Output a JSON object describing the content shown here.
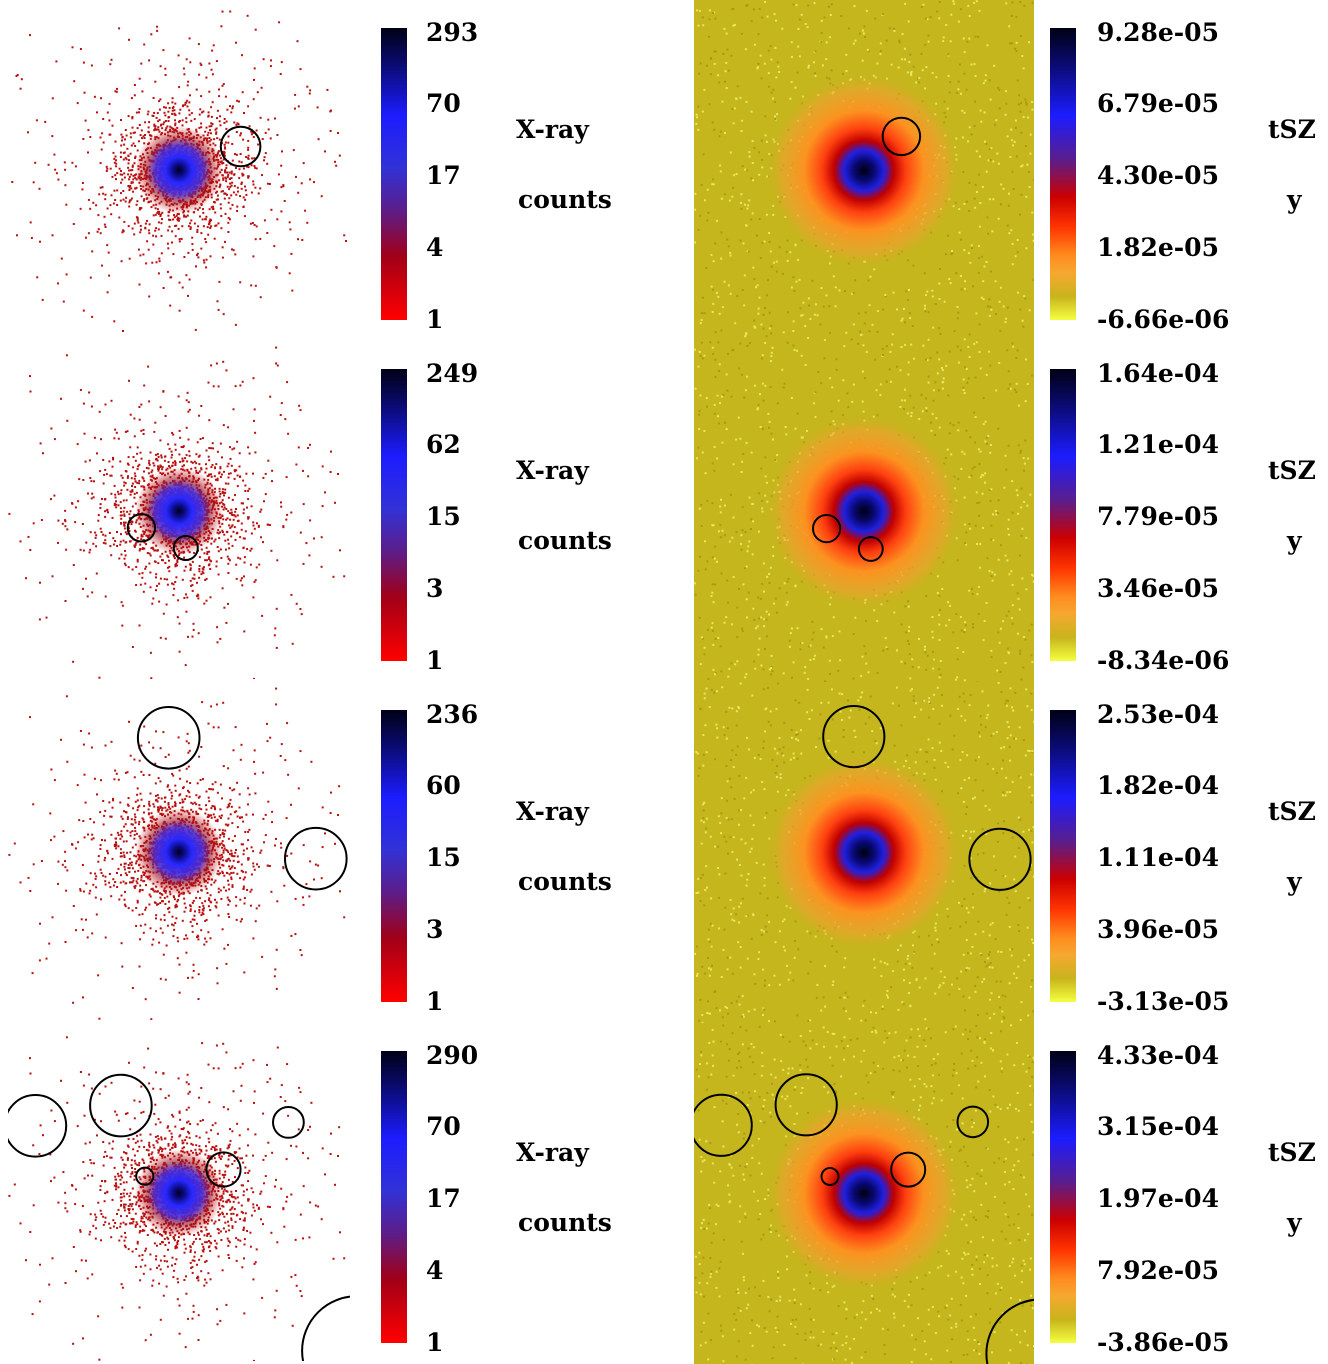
{
  "chart_data": [
    {
      "type": "heatmap",
      "map": "xray",
      "colorbar_ticks": [
        "293",
        "70",
        "17",
        "4",
        "1"
      ],
      "label_line1": "X-ray",
      "label_line2": "counts",
      "scale": "log",
      "sources": [
        {
          "x": 0.68,
          "y": 0.43,
          "r": 0.058
        }
      ]
    },
    {
      "type": "heatmap",
      "map": "tsz",
      "colorbar_ticks": [
        "9.28e-05",
        "6.79e-05",
        "4.30e-05",
        "1.82e-05",
        "-6.66e-06"
      ],
      "label_line1": "tSZ",
      "label_line2": "y",
      "sources": [
        {
          "x": 0.61,
          "y": 0.4,
          "r": 0.055
        }
      ]
    },
    {
      "type": "heatmap",
      "map": "xray",
      "colorbar_ticks": [
        "249",
        "62",
        "15",
        "3",
        "1"
      ],
      "label_line1": "X-ray",
      "label_line2": "counts",
      "scale": "log",
      "sources": [
        {
          "x": 0.39,
          "y": 0.55,
          "r": 0.04
        },
        {
          "x": 0.52,
          "y": 0.61,
          "r": 0.035
        }
      ]
    },
    {
      "type": "heatmap",
      "map": "tsz",
      "colorbar_ticks": [
        "1.64e-04",
        "1.21e-04",
        "7.79e-05",
        "3.46e-05",
        "-8.34e-06"
      ],
      "label_line1": "tSZ",
      "label_line2": "y",
      "sources": [
        {
          "x": 0.39,
          "y": 0.55,
          "r": 0.04
        },
        {
          "x": 0.52,
          "y": 0.61,
          "r": 0.035
        }
      ]
    },
    {
      "type": "heatmap",
      "map": "xray",
      "colorbar_ticks": [
        "236",
        "60",
        "15",
        "3",
        "1"
      ],
      "label_line1": "X-ray",
      "label_line2": "counts",
      "scale": "log",
      "sources": [
        {
          "x": 0.47,
          "y": 0.16,
          "r": 0.09
        },
        {
          "x": 0.9,
          "y": 0.52,
          "r": 0.09
        }
      ]
    },
    {
      "type": "heatmap",
      "map": "tsz",
      "colorbar_ticks": [
        "2.53e-04",
        "1.82e-04",
        "1.11e-04",
        "3.96e-05",
        "-3.13e-05"
      ],
      "label_line1": "tSZ",
      "label_line2": "y",
      "sources": [
        {
          "x": 0.47,
          "y": 0.16,
          "r": 0.09
        },
        {
          "x": 0.9,
          "y": 0.52,
          "r": 0.09
        }
      ]
    },
    {
      "type": "heatmap",
      "map": "xray",
      "colorbar_ticks": [
        "290",
        "70",
        "17",
        "4",
        "1"
      ],
      "label_line1": "X-ray",
      "label_line2": "counts",
      "scale": "log",
      "sources": [
        {
          "x": 0.08,
          "y": 0.3,
          "r": 0.09
        },
        {
          "x": 0.33,
          "y": 0.24,
          "r": 0.09
        },
        {
          "x": 0.82,
          "y": 0.29,
          "r": 0.045
        },
        {
          "x": 0.63,
          "y": 0.43,
          "r": 0.05
        },
        {
          "x": 0.4,
          "y": 0.45,
          "r": 0.025
        },
        {
          "x": 1.02,
          "y": 0.97,
          "r": 0.16
        }
      ]
    },
    {
      "type": "heatmap",
      "map": "tsz",
      "colorbar_ticks": [
        "4.33e-04",
        "3.15e-04",
        "1.97e-04",
        "7.92e-05",
        "-3.86e-05"
      ],
      "label_line1": "tSZ",
      "label_line2": "y",
      "sources": [
        {
          "x": 0.08,
          "y": 0.3,
          "r": 0.09
        },
        {
          "x": 0.33,
          "y": 0.24,
          "r": 0.09
        },
        {
          "x": 0.82,
          "y": 0.29,
          "r": 0.045
        },
        {
          "x": 0.63,
          "y": 0.43,
          "r": 0.05
        },
        {
          "x": 0.4,
          "y": 0.45,
          "r": 0.025
        },
        {
          "x": 1.02,
          "y": 0.97,
          "r": 0.16
        }
      ]
    }
  ]
}
